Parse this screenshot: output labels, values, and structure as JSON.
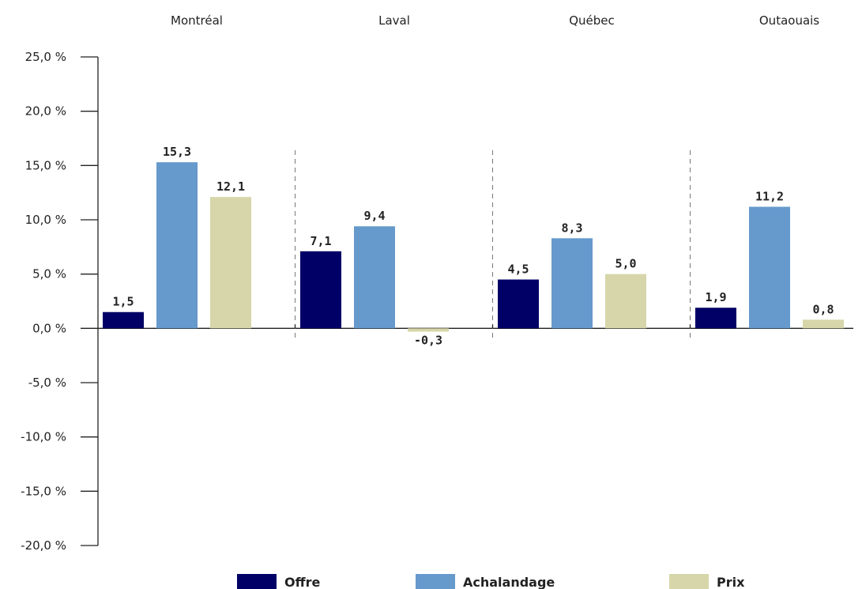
{
  "chart_data": {
    "type": "bar",
    "categories": [
      "Montréal",
      "Laval",
      "Québec",
      "Outaouais"
    ],
    "series": [
      {
        "name": "Offre",
        "values": [
          1.5,
          7.1,
          4.5,
          1.9
        ],
        "labels": [
          "1,5",
          "7,1",
          "4,5",
          "1,9"
        ],
        "color": "#000066"
      },
      {
        "name": "Achalandage",
        "values": [
          15.3,
          9.4,
          8.3,
          11.2
        ],
        "labels": [
          "15,3",
          "9,4",
          "8,3",
          "11,2"
        ],
        "color": "#6699cc"
      },
      {
        "name": "Prix",
        "values": [
          12.1,
          -0.3,
          5.0,
          0.8
        ],
        "labels": [
          "12,1",
          "-0,3",
          "5,0",
          "0,8"
        ],
        "color": "#d6d6aa"
      }
    ],
    "yticks": [
      25,
      20,
      15,
      10,
      5,
      0,
      -5,
      -10,
      -15,
      -20
    ],
    "ytick_labels": [
      "25,0 %",
      "20,0 %",
      "15,0 %",
      "10,0 %",
      "5,0 %",
      "0,0 %",
      "-5,0 %",
      "-10,0 %",
      "-15,0 %",
      "-20,0 %"
    ],
    "ylim": [
      -20,
      25
    ],
    "title": "",
    "xlabel": "",
    "ylabel": "",
    "grid": false,
    "legend_position": "bottom"
  }
}
